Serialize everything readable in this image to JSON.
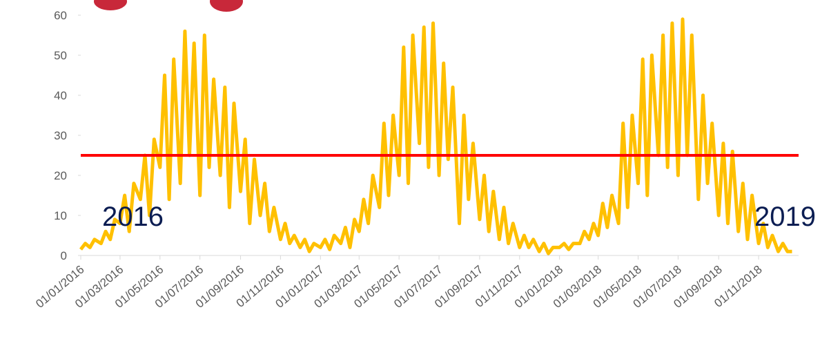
{
  "chart_data": {
    "type": "line",
    "x": [
      "2016-01-01",
      "2016-01-08",
      "2016-01-15",
      "2016-01-22",
      "2016-02-01",
      "2016-02-08",
      "2016-02-15",
      "2016-02-22",
      "2016-03-01",
      "2016-03-08",
      "2016-03-15",
      "2016-03-22",
      "2016-04-01",
      "2016-04-08",
      "2016-04-15",
      "2016-04-22",
      "2016-05-01",
      "2016-05-08",
      "2016-05-15",
      "2016-05-22",
      "2016-06-01",
      "2016-06-08",
      "2016-06-15",
      "2016-06-22",
      "2016-07-01",
      "2016-07-08",
      "2016-07-15",
      "2016-07-22",
      "2016-08-01",
      "2016-08-08",
      "2016-08-15",
      "2016-08-22",
      "2016-09-01",
      "2016-09-08",
      "2016-09-15",
      "2016-09-22",
      "2016-10-01",
      "2016-10-08",
      "2016-10-15",
      "2016-10-22",
      "2016-11-01",
      "2016-11-08",
      "2016-11-15",
      "2016-11-22",
      "2016-12-01",
      "2016-12-08",
      "2016-12-15",
      "2016-12-22",
      "2017-01-01",
      "2017-01-08",
      "2017-01-15",
      "2017-01-22",
      "2017-02-01",
      "2017-02-08",
      "2017-02-15",
      "2017-02-22",
      "2017-03-01",
      "2017-03-08",
      "2017-03-15",
      "2017-03-22",
      "2017-04-01",
      "2017-04-08",
      "2017-04-15",
      "2017-04-22",
      "2017-05-01",
      "2017-05-08",
      "2017-05-15",
      "2017-05-22",
      "2017-06-01",
      "2017-06-08",
      "2017-06-15",
      "2017-06-22",
      "2017-07-01",
      "2017-07-08",
      "2017-07-15",
      "2017-07-22",
      "2017-08-01",
      "2017-08-08",
      "2017-08-15",
      "2017-08-22",
      "2017-09-01",
      "2017-09-08",
      "2017-09-15",
      "2017-09-22",
      "2017-10-01",
      "2017-10-08",
      "2017-10-15",
      "2017-10-22",
      "2017-11-01",
      "2017-11-08",
      "2017-11-15",
      "2017-11-22",
      "2017-12-01",
      "2017-12-08",
      "2017-12-15",
      "2017-12-22",
      "2018-01-01",
      "2018-01-08",
      "2018-01-15",
      "2018-01-22",
      "2018-02-01",
      "2018-02-08",
      "2018-02-15",
      "2018-02-22",
      "2018-03-01",
      "2018-03-08",
      "2018-03-15",
      "2018-03-22",
      "2018-04-01",
      "2018-04-08",
      "2018-04-15",
      "2018-04-22",
      "2018-05-01",
      "2018-05-08",
      "2018-05-15",
      "2018-05-22",
      "2018-06-01",
      "2018-06-08",
      "2018-06-15",
      "2018-06-22",
      "2018-07-01",
      "2018-07-08",
      "2018-07-15",
      "2018-07-22",
      "2018-08-01",
      "2018-08-08",
      "2018-08-15",
      "2018-08-22",
      "2018-09-01",
      "2018-09-08",
      "2018-09-15",
      "2018-09-22",
      "2018-10-01",
      "2018-10-08",
      "2018-10-15",
      "2018-10-22",
      "2018-11-01",
      "2018-11-08",
      "2018-11-15",
      "2018-11-22",
      "2018-12-01",
      "2018-12-08",
      "2018-12-15",
      "2018-12-22"
    ],
    "series": [
      {
        "color": "#ffc000",
        "values": [
          1.5,
          3,
          2,
          4,
          3,
          6,
          4,
          9,
          8,
          15,
          6,
          18,
          14,
          25,
          10,
          29,
          22,
          45,
          14,
          49,
          18,
          56,
          25,
          53,
          15,
          55,
          22,
          44,
          20,
          42,
          12,
          38,
          16,
          29,
          8,
          24,
          10,
          18,
          6,
          12,
          4,
          8,
          3,
          5,
          2,
          4,
          1,
          3,
          2,
          4,
          1.5,
          5,
          3,
          7,
          2,
          9,
          6,
          14,
          8,
          20,
          12,
          33,
          15,
          35,
          20,
          52,
          18,
          55,
          28,
          57,
          22,
          58,
          20,
          48,
          24,
          42,
          8,
          35,
          14,
          28,
          9,
          20,
          6,
          16,
          4,
          12,
          3,
          8,
          2,
          5,
          2,
          4,
          1,
          3,
          0.5,
          2,
          2,
          3,
          1.5,
          3,
          3,
          6,
          4,
          8,
          5,
          13,
          7,
          15,
          8,
          33,
          12,
          35,
          18,
          49,
          15,
          50,
          25,
          55,
          22,
          58,
          20,
          59,
          25,
          55,
          14,
          40,
          18,
          33,
          10,
          28,
          8,
          26,
          6,
          18,
          4,
          15,
          3,
          8,
          2,
          5,
          1,
          3,
          1,
          1
        ]
      }
    ],
    "threshold": {
      "value": 25,
      "color": "#ff0000"
    },
    "annotations": [
      "2016",
      "2019"
    ],
    "xlim": [
      "2016-01-01",
      "2019-01-01"
    ],
    "xticks": [
      {
        "value": "2016-01-01",
        "label": "01/01/2016"
      },
      {
        "value": "2016-03-01",
        "label": "01/03/2016"
      },
      {
        "value": "2016-05-01",
        "label": "01/05/2016"
      },
      {
        "value": "2016-07-01",
        "label": "01/07/2016"
      },
      {
        "value": "2016-09-01",
        "label": "01/09/2016"
      },
      {
        "value": "2016-11-01",
        "label": "01/11/2016"
      },
      {
        "value": "2017-01-01",
        "label": "01/01/2017"
      },
      {
        "value": "2017-03-01",
        "label": "01/03/2017"
      },
      {
        "value": "2017-05-01",
        "label": "01/05/2017"
      },
      {
        "value": "2017-07-01",
        "label": "01/07/2017"
      },
      {
        "value": "2017-09-01",
        "label": "01/09/2017"
      },
      {
        "value": "2017-11-01",
        "label": "01/11/2017"
      },
      {
        "value": "2018-01-01",
        "label": "01/01/2018"
      },
      {
        "value": "2018-03-01",
        "label": "01/03/2018"
      },
      {
        "value": "2018-05-01",
        "label": "01/05/2018"
      },
      {
        "value": "2018-07-01",
        "label": "01/07/2018"
      },
      {
        "value": "2018-09-01",
        "label": "01/09/2018"
      },
      {
        "value": "2018-11-01",
        "label": "01/11/2018"
      }
    ],
    "ylim": [
      0,
      60
    ],
    "yticks": [
      0,
      10,
      20,
      30,
      40,
      50,
      60
    ]
  }
}
